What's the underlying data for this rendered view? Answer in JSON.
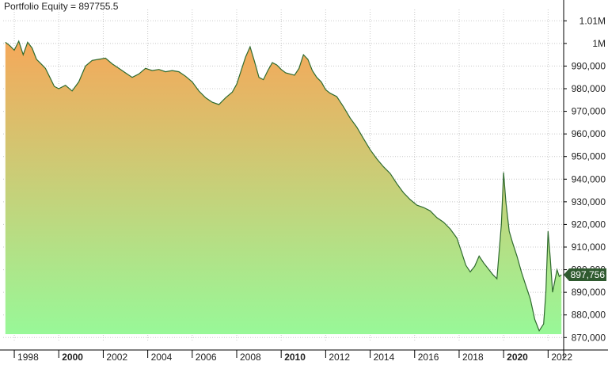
{
  "legend_title": "Portfolio Equity = 897755.5",
  "colors": {
    "line": "#2f6b2f",
    "fill_top": "#f5a85a",
    "fill_bottom": "#98f898",
    "grid": "#c8c8c8",
    "axis": "#000000",
    "last_value_badge": "#2f5a2f",
    "last_value_text": "#ffffff"
  },
  "chart_data": {
    "type": "area",
    "title": "Portfolio Equity = 897755.5",
    "xlabel": "",
    "ylabel": "",
    "x_ticks": [
      "1998",
      "2000",
      "2002",
      "2004",
      "2006",
      "2008",
      "2010",
      "2012",
      "2014",
      "2016",
      "2018",
      "2020",
      "2022"
    ],
    "x_ticks_bold": [
      "2000",
      "2010",
      "2020"
    ],
    "y_ticks": [
      {
        "value": 870000,
        "label": "870,000"
      },
      {
        "value": 880000,
        "label": "880,000"
      },
      {
        "value": 890000,
        "label": "890,000"
      },
      {
        "value": 900000,
        "label": "900,000"
      },
      {
        "value": 910000,
        "label": "910,000"
      },
      {
        "value": 920000,
        "label": "920,000"
      },
      {
        "value": 930000,
        "label": "930,000"
      },
      {
        "value": 940000,
        "label": "940,000"
      },
      {
        "value": 950000,
        "label": "950,000"
      },
      {
        "value": 960000,
        "label": "960,000"
      },
      {
        "value": 970000,
        "label": "970,000"
      },
      {
        "value": 980000,
        "label": "980,000"
      },
      {
        "value": 990000,
        "label": "990,000"
      },
      {
        "value": 1000000,
        "label": "1M"
      },
      {
        "value": 1010000,
        "label": "1.01M"
      }
    ],
    "xlim": [
      1997.5,
      2022.7
    ],
    "ylim": [
      868000,
      1015000
    ],
    "fill_baseline": 871500,
    "grid": true,
    "last_value": 897755.5,
    "last_value_label": "897,756",
    "series": [
      {
        "x": [
          1997.6,
          1997.8,
          1998.0,
          1998.2,
          1998.4,
          1998.6,
          1998.8,
          1999.0,
          1999.2,
          1999.4,
          1999.6,
          1999.8,
          2000.0,
          2000.3,
          2000.6,
          2000.9,
          2001.2,
          2001.5,
          2001.8,
          2002.1,
          2002.4,
          2002.7,
          2003.0,
          2003.3,
          2003.6,
          2003.9,
          2004.2,
          2004.5,
          2004.8,
          2005.1,
          2005.4,
          2005.7,
          2006.0,
          2006.3,
          2006.6,
          2006.9,
          2007.2,
          2007.5,
          2007.8,
          2008.0,
          2008.2,
          2008.4,
          2008.6,
          2008.8,
          2009.0,
          2009.2,
          2009.4,
          2009.6,
          2009.8,
          2010.0,
          2010.2,
          2010.4,
          2010.6,
          2010.8,
          2011.0,
          2011.2,
          2011.4,
          2011.6,
          2011.8,
          2012.0,
          2012.2,
          2012.5,
          2012.8,
          2013.1,
          2013.4,
          2013.7,
          2014.0,
          2014.3,
          2014.6,
          2014.9,
          2015.2,
          2015.5,
          2015.8,
          2016.1,
          2016.4,
          2016.7,
          2017.0,
          2017.3,
          2017.6,
          2017.9,
          2018.1,
          2018.3,
          2018.5,
          2018.7,
          2018.9,
          2019.1,
          2019.3,
          2019.5,
          2019.7,
          2019.9,
          2020.0,
          2020.1,
          2020.25,
          2020.4,
          2020.6,
          2020.8,
          2021.0,
          2021.2,
          2021.4,
          2021.6,
          2021.8,
          2021.9,
          2022.0,
          2022.1,
          2022.2,
          2022.3,
          2022.4,
          2022.5,
          2022.6
        ],
        "y": [
          1000500,
          999000,
          997000,
          1001000,
          995000,
          1000500,
          998000,
          993000,
          991000,
          989000,
          985000,
          981000,
          980000,
          981500,
          979000,
          983000,
          990000,
          992500,
          993000,
          993500,
          991000,
          989000,
          987000,
          985000,
          986500,
          989000,
          988000,
          988500,
          987500,
          988000,
          987500,
          985500,
          983000,
          979000,
          976000,
          974000,
          973000,
          976000,
          978500,
          982000,
          988000,
          994000,
          998500,
          992000,
          985000,
          984000,
          988000,
          991500,
          990500,
          988500,
          987000,
          986500,
          986000,
          989000,
          995000,
          993000,
          988000,
          985000,
          983000,
          979500,
          978000,
          976500,
          972000,
          967000,
          963000,
          958000,
          953000,
          949000,
          945500,
          942500,
          938000,
          934000,
          931000,
          928500,
          927500,
          926000,
          923000,
          921000,
          918000,
          914000,
          908000,
          902000,
          899000,
          901500,
          906000,
          903000,
          900500,
          898000,
          896000,
          920000,
          943000,
          930000,
          917000,
          912000,
          906000,
          899000,
          893000,
          887000,
          878000,
          873000,
          876000,
          890000,
          917000,
          905000,
          890000,
          895000,
          900000,
          897000,
          897755.5
        ]
      }
    ]
  }
}
